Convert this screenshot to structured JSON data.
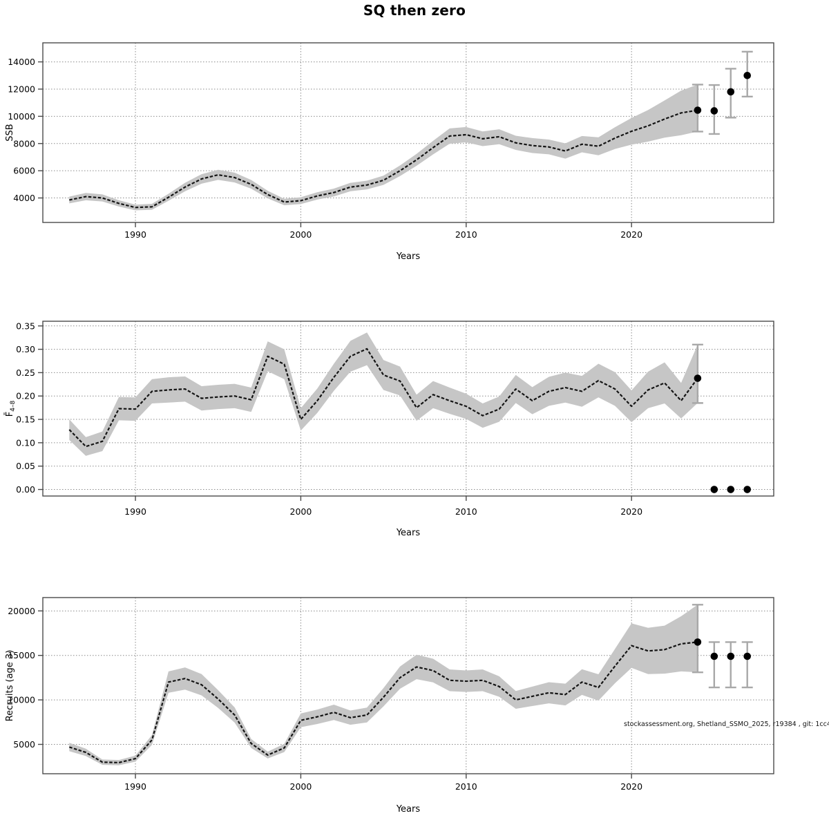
{
  "title": "SQ then zero",
  "watermark": "stockassessment.org, Shetland_SSMO_2025, r19384 , git: 1cc4",
  "colors": {
    "band": "#c6c6c6",
    "line": "#141414",
    "grid": "#8a8a8a",
    "box": "#4a4a4a",
    "errorbar": "#a8a8a8",
    "dot": "#000000",
    "tick_text": "#000000"
  },
  "x_axis": {
    "label": "Years",
    "ticks": [
      1990,
      2000,
      2010,
      2020
    ],
    "tick_labels": [
      "1990",
      "2000",
      "2010",
      "2020"
    ],
    "xlim": [
      1984.4,
      2028.6
    ]
  },
  "chart_data": [
    {
      "type": "line",
      "panel": "ssb",
      "ylabel": "SSB",
      "ylabel_sub": "",
      "ylim": [
        2200,
        15400
      ],
      "yticks": [
        4000,
        6000,
        8000,
        10000,
        12000,
        14000
      ],
      "ytick_labels": [
        "4000",
        "6000",
        "8000",
        "10000",
        "12000",
        "14000"
      ],
      "years": [
        1986,
        1987,
        1988,
        1989,
        1990,
        1991,
        1992,
        1993,
        1994,
        1995,
        1996,
        1997,
        1998,
        1999,
        2000,
        2001,
        2002,
        2003,
        2004,
        2005,
        2006,
        2007,
        2008,
        2009,
        2010,
        2011,
        2012,
        2013,
        2014,
        2015,
        2016,
        2017,
        2018,
        2019,
        2020,
        2021,
        2022,
        2023,
        2024
      ],
      "values": [
        3850,
        4100,
        4000,
        3600,
        3300,
        3350,
        4050,
        4800,
        5400,
        5700,
        5500,
        5000,
        4250,
        3700,
        3800,
        4150,
        4400,
        4800,
        4950,
        5300,
        6000,
        6800,
        7700,
        8550,
        8650,
        8350,
        8500,
        8050,
        7850,
        7750,
        7450,
        7950,
        7800,
        8400,
        8900,
        9300,
        9800,
        10250,
        10450
      ],
      "band_lo": [
        3600,
        3830,
        3740,
        3370,
        3090,
        3130,
        3790,
        4490,
        5050,
        5330,
        5140,
        4680,
        3970,
        3460,
        3550,
        3880,
        4110,
        4490,
        4630,
        4960,
        5610,
        6360,
        7200,
        7990,
        8090,
        7810,
        7950,
        7530,
        7300,
        7210,
        6890,
        7350,
        7140,
        7600,
        7920,
        8140,
        8430,
        8610,
        8880
      ],
      "band_hi": [
        4100,
        4370,
        4260,
        3830,
        3510,
        3570,
        4310,
        5110,
        5750,
        6070,
        5860,
        5320,
        4530,
        3940,
        4050,
        4420,
        4690,
        5110,
        5270,
        5640,
        6390,
        7240,
        8200,
        9110,
        9210,
        8890,
        9050,
        8570,
        8400,
        8290,
        8010,
        8550,
        8460,
        9200,
        9880,
        10460,
        11170,
        11890,
        12330
      ],
      "forecast": {
        "years": [
          2025,
          2026,
          2027
        ],
        "values": [
          10400,
          11800,
          13000
        ],
        "lo": [
          8700,
          9900,
          11450
        ],
        "hi": [
          12300,
          13500,
          14750
        ]
      }
    },
    {
      "type": "line",
      "panel": "fbar",
      "ylabel": "F̄",
      "ylabel_sub": "4–8",
      "ylim": [
        -0.014,
        0.36
      ],
      "yticks": [
        0.0,
        0.05,
        0.1,
        0.15,
        0.2,
        0.25,
        0.3,
        0.35
      ],
      "ytick_labels": [
        "0.00",
        "0.05",
        "0.10",
        "0.15",
        "0.20",
        "0.25",
        "0.30",
        "0.35"
      ],
      "years": [
        1986,
        1987,
        1988,
        1989,
        1990,
        1991,
        1992,
        1993,
        1994,
        1995,
        1996,
        1997,
        1998,
        1999,
        2000,
        2001,
        2002,
        2003,
        2004,
        2005,
        2006,
        2007,
        2008,
        2009,
        2010,
        2011,
        2012,
        2013,
        2014,
        2015,
        2016,
        2017,
        2018,
        2019,
        2020,
        2021,
        2022,
        2023,
        2024
      ],
      "values": [
        0.128,
        0.092,
        0.103,
        0.173,
        0.172,
        0.21,
        0.213,
        0.215,
        0.195,
        0.198,
        0.2,
        0.192,
        0.285,
        0.268,
        0.15,
        0.19,
        0.24,
        0.285,
        0.301,
        0.245,
        0.232,
        0.175,
        0.203,
        0.19,
        0.178,
        0.158,
        0.172,
        0.215,
        0.19,
        0.21,
        0.218,
        0.21,
        0.233,
        0.215,
        0.178,
        0.213,
        0.228,
        0.19,
        0.238
      ],
      "band_lo": [
        0.106,
        0.072,
        0.082,
        0.148,
        0.147,
        0.184,
        0.186,
        0.188,
        0.169,
        0.172,
        0.174,
        0.166,
        0.253,
        0.236,
        0.126,
        0.164,
        0.211,
        0.252,
        0.266,
        0.213,
        0.201,
        0.147,
        0.174,
        0.162,
        0.151,
        0.132,
        0.145,
        0.185,
        0.161,
        0.179,
        0.186,
        0.177,
        0.197,
        0.179,
        0.144,
        0.174,
        0.184,
        0.152,
        0.185
      ],
      "band_hi": [
        0.15,
        0.112,
        0.124,
        0.198,
        0.197,
        0.236,
        0.24,
        0.242,
        0.221,
        0.224,
        0.226,
        0.218,
        0.317,
        0.3,
        0.174,
        0.216,
        0.269,
        0.318,
        0.336,
        0.277,
        0.263,
        0.203,
        0.232,
        0.218,
        0.205,
        0.184,
        0.199,
        0.245,
        0.219,
        0.241,
        0.25,
        0.243,
        0.269,
        0.251,
        0.212,
        0.252,
        0.272,
        0.228,
        0.31
      ],
      "forecast": {
        "years": [
          2025,
          2026,
          2027
        ],
        "values": [
          0,
          0,
          0
        ],
        "lo": null,
        "hi": null
      }
    },
    {
      "type": "line",
      "panel": "recruits",
      "ylabel": "Recruits (age 3)",
      "ylabel_sub": "",
      "ylim": [
        1700,
        21500
      ],
      "yticks": [
        5000,
        10000,
        15000,
        20000
      ],
      "ytick_labels": [
        "5000",
        "10000",
        "15000",
        "20000"
      ],
      "years": [
        1986,
        1987,
        1988,
        1989,
        1990,
        1991,
        1992,
        1993,
        1994,
        1995,
        1996,
        1997,
        1998,
        1999,
        2000,
        2001,
        2002,
        2003,
        2004,
        2005,
        2006,
        2007,
        2008,
        2009,
        2010,
        2011,
        2012,
        2013,
        2014,
        2015,
        2016,
        2017,
        2018,
        2019,
        2020,
        2021,
        2022,
        2023,
        2024
      ],
      "values": [
        4700,
        4100,
        3000,
        2950,
        3400,
        5500,
        12000,
        12400,
        11700,
        10100,
        8300,
        5100,
        3800,
        4600,
        7700,
        8100,
        8600,
        8000,
        8300,
        10300,
        12500,
        13700,
        13300,
        12200,
        12100,
        12200,
        11500,
        10000,
        10400,
        10800,
        10600,
        12000,
        11400,
        13800,
        16100,
        15500,
        15650,
        16300,
        16500
      ],
      "band_lo": [
        4230,
        3690,
        2700,
        2650,
        3060,
        4950,
        10800,
        11150,
        10500,
        9100,
        7450,
        4590,
        3420,
        4140,
        6930,
        7290,
        7740,
        7200,
        7470,
        9270,
        11250,
        12330,
        11970,
        10980,
        10890,
        10980,
        10350,
        9000,
        9310,
        9610,
        9380,
        10560,
        9920,
        11870,
        13600,
        12900,
        12950,
        13200,
        13100
      ],
      "band_hi": [
        5170,
        4510,
        3300,
        3240,
        3740,
        6050,
        13200,
        13650,
        12900,
        11100,
        9150,
        5610,
        4180,
        5060,
        8470,
        8910,
        9460,
        8800,
        9130,
        11330,
        13750,
        15070,
        14630,
        13420,
        13310,
        13420,
        12650,
        11000,
        11490,
        11990,
        11820,
        13440,
        12880,
        15730,
        18600,
        18100,
        18350,
        19400,
        20700
      ],
      "forecast": {
        "years": [
          2025,
          2026,
          2027
        ],
        "values": [
          14900,
          14900,
          14900
        ],
        "lo": [
          11400,
          11400,
          11400
        ],
        "hi": [
          16500,
          16500,
          16500
        ]
      }
    }
  ]
}
